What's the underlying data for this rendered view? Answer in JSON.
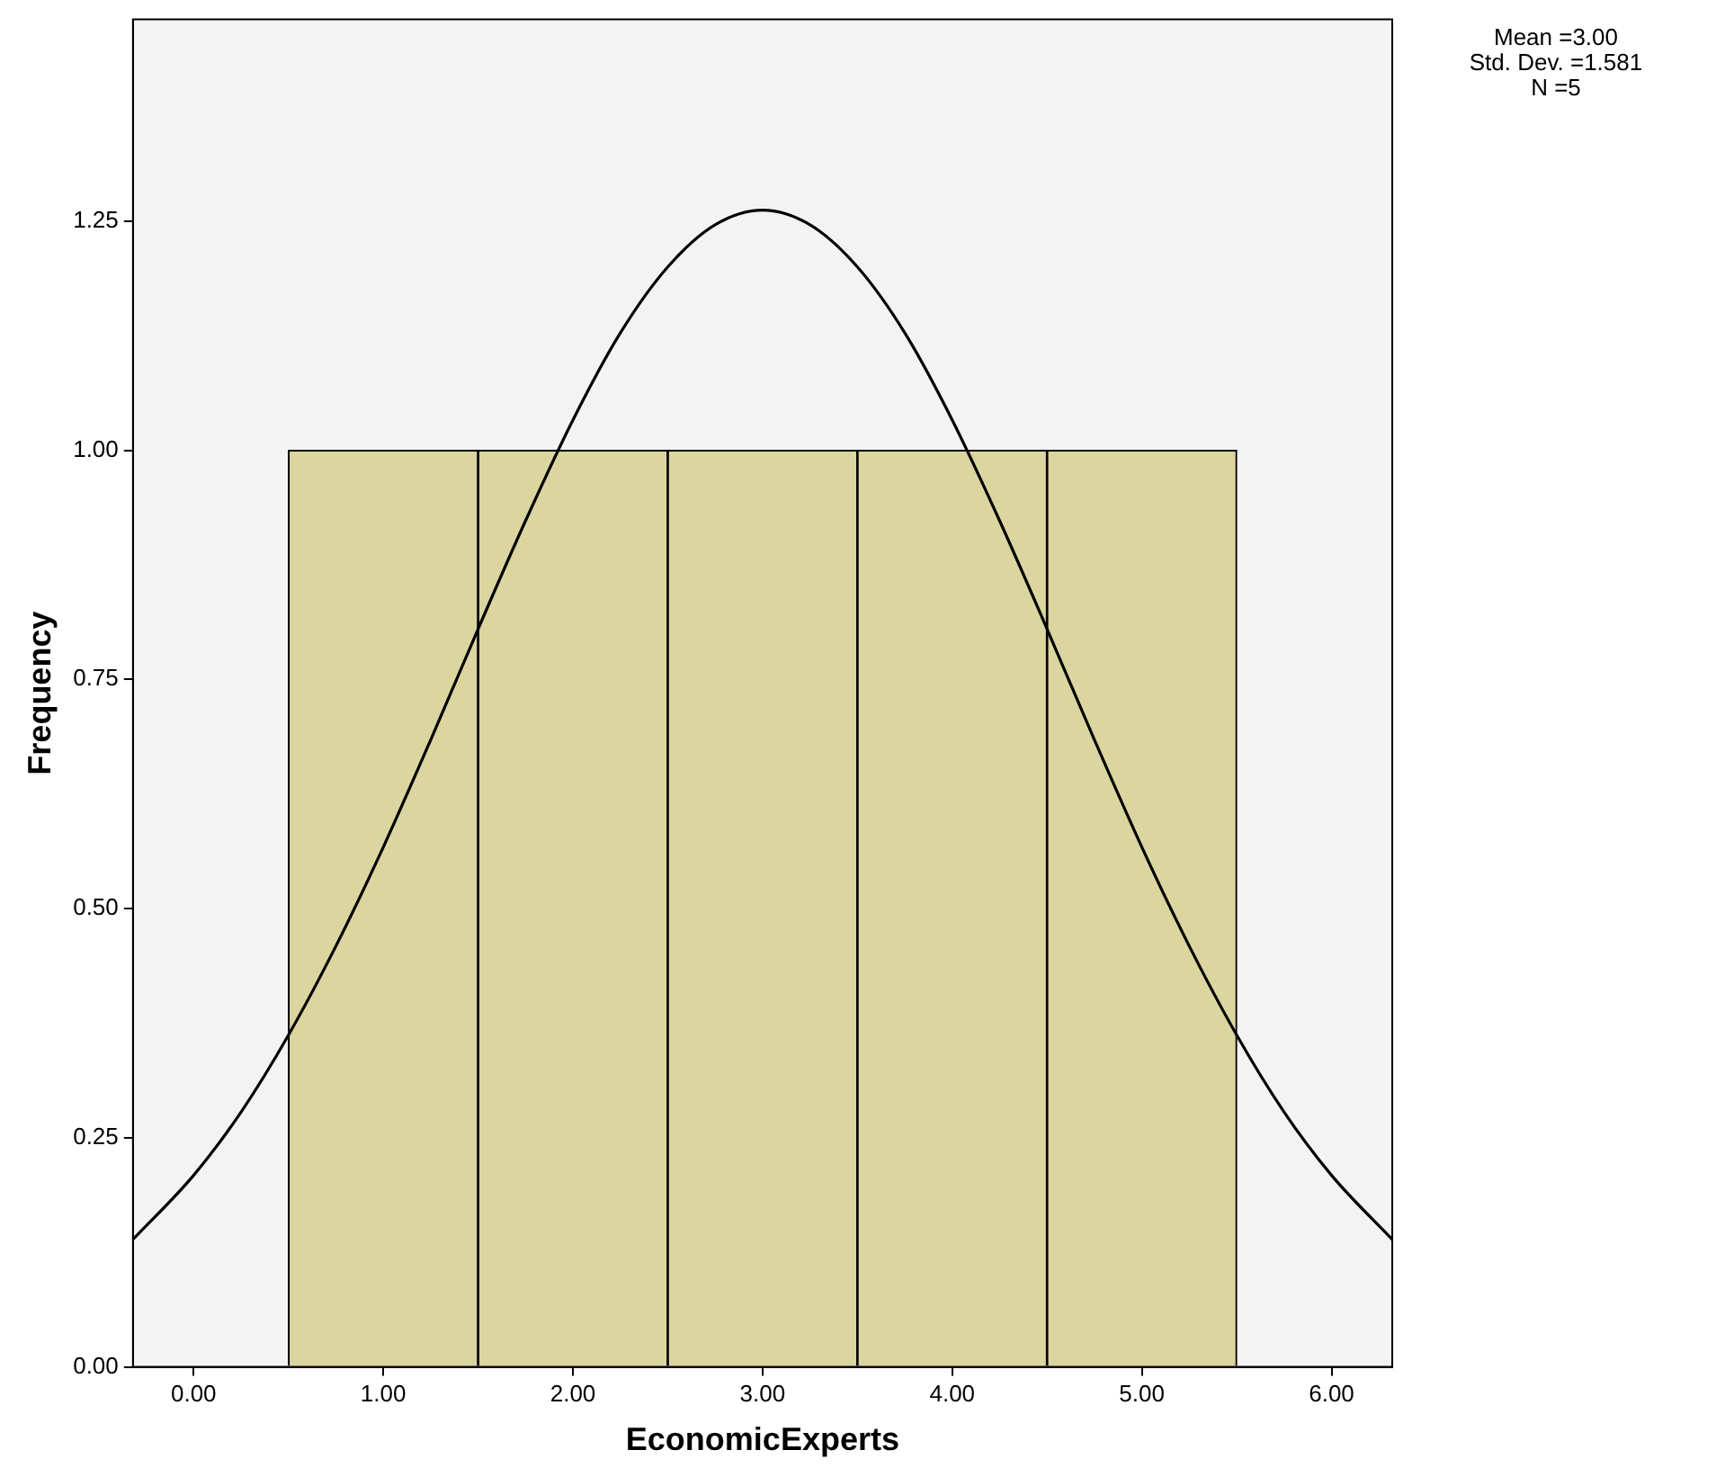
{
  "chart_data": {
    "type": "histogram",
    "xlabel": "EconomicExperts",
    "ylabel": "Frequency",
    "bins": [
      0.5,
      1.5,
      2.5,
      3.5,
      4.5,
      5.5
    ],
    "values": [
      1,
      1,
      1,
      1,
      1
    ],
    "color": "#dbd59f",
    "series": [
      {
        "type": "line",
        "color": "#000000",
        "x": [
          -0.32,
          0,
          0.25,
          0.5,
          0.75,
          1,
          1.25,
          1.5,
          1.75,
          2,
          2.25,
          2.5,
          2.75,
          3,
          3.25,
          3.5,
          3.75,
          4,
          4.25,
          4.5,
          4.75,
          5,
          5.25,
          5.5,
          5.75,
          6,
          6.32
        ],
        "values": [
          0.139,
          0.209,
          0.278,
          0.362,
          0.459,
          0.567,
          0.684,
          0.805,
          0.923,
          1.033,
          1.128,
          1.2,
          1.246,
          1.262,
          1.246,
          1.2,
          1.128,
          1.033,
          0.923,
          0.805,
          0.684,
          0.567,
          0.459,
          0.362,
          0.278,
          0.209,
          0.139
        ]
      }
    ],
    "xlim": [
      -0.32,
      6.32
    ],
    "ylim": [
      0,
      1.47
    ],
    "xticks": [
      {
        "value": 0,
        "label": "0.00"
      },
      {
        "value": 1,
        "label": "1.00"
      },
      {
        "value": 2,
        "label": "2.00"
      },
      {
        "value": 3,
        "label": "3.00"
      },
      {
        "value": 4,
        "label": "4.00"
      },
      {
        "value": 5,
        "label": "5.00"
      },
      {
        "value": 6,
        "label": "6.00"
      }
    ],
    "yticks": [
      {
        "value": 0,
        "label": "0.00"
      },
      {
        "value": 0.25,
        "label": "0.25"
      },
      {
        "value": 0.5,
        "label": "0.50"
      },
      {
        "value": 0.75,
        "label": "0.75"
      },
      {
        "value": 1,
        "label": "1.00"
      },
      {
        "value": 1.25,
        "label": "1.25"
      }
    ],
    "annotations": [
      "Mean =3.00",
      "Std. Dev. =1.581",
      "N =5"
    ],
    "grid": false,
    "legend": false,
    "marker": "none"
  }
}
